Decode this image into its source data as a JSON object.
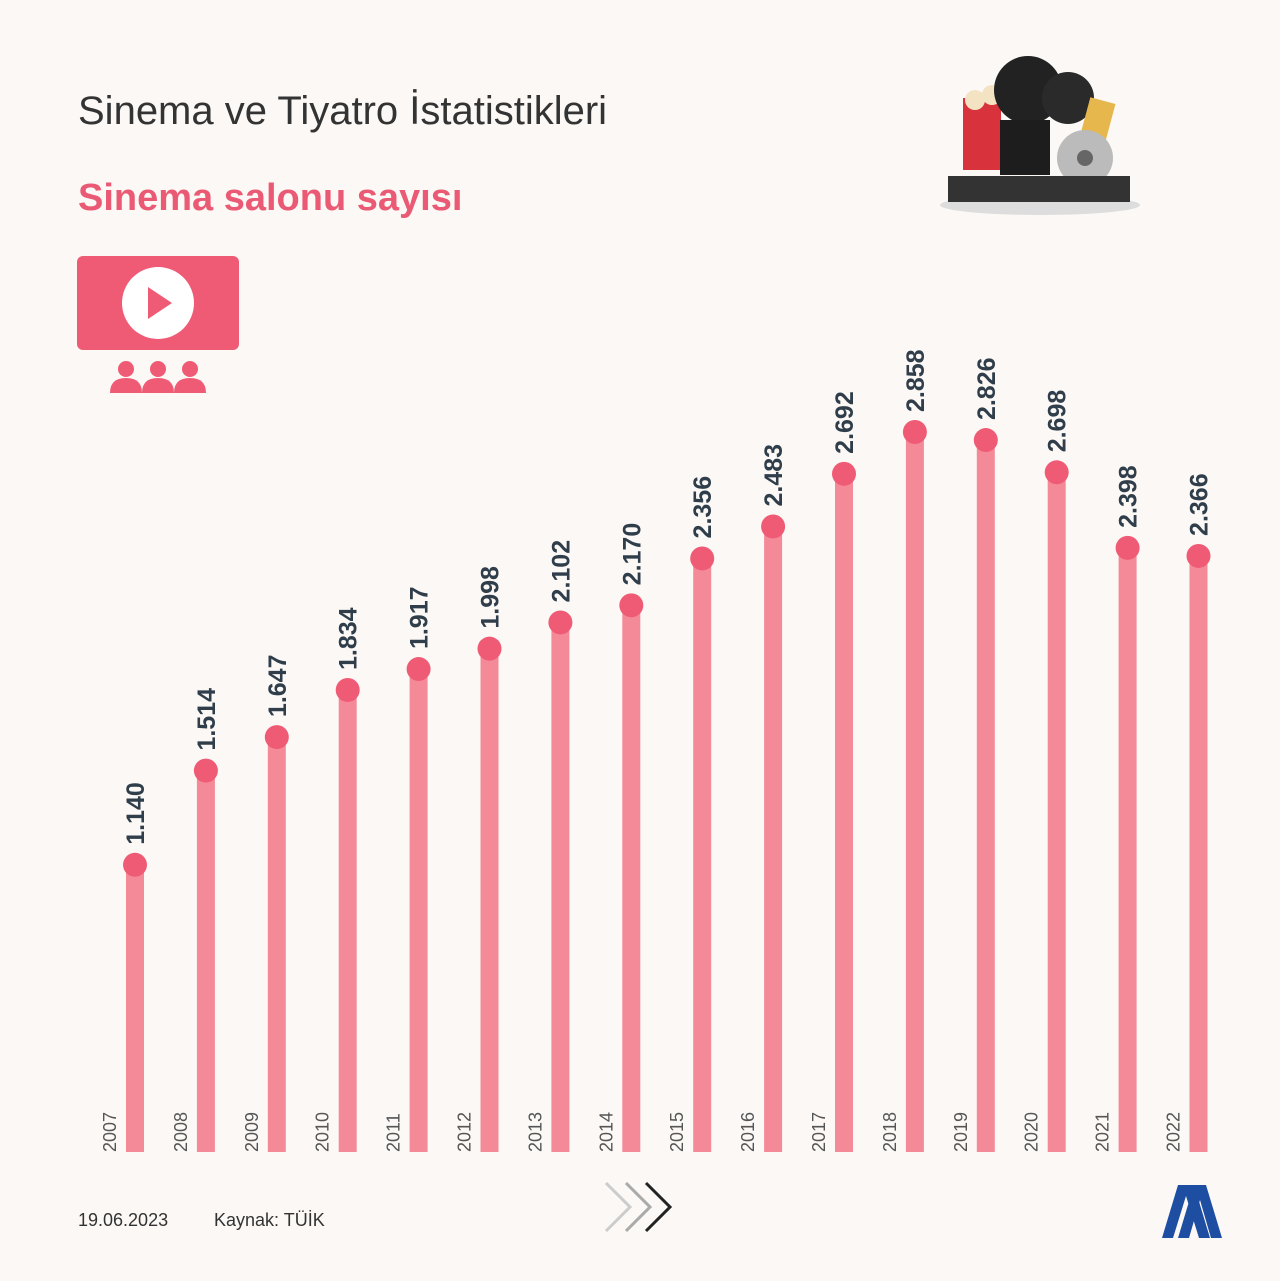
{
  "chart_data": {
    "type": "lollipop",
    "title": "Sinema ve Tiyatro İstatistikleri",
    "subtitle": "Sinema salonu sayısı",
    "categories": [
      "2007",
      "2008",
      "2009",
      "2010",
      "2011",
      "2012",
      "2013",
      "2014",
      "2015",
      "2016",
      "2017",
      "2018",
      "2019",
      "2020",
      "2021",
      "2022"
    ],
    "values": [
      1140,
      1514,
      1647,
      1834,
      1917,
      1998,
      2102,
      2170,
      2356,
      2483,
      2692,
      2858,
      2826,
      2698,
      2398,
      2366
    ],
    "value_labels": [
      "1.140",
      "1.514",
      "1.647",
      "1.834",
      "1.917",
      "1.998",
      "2.102",
      "2.170",
      "2.356",
      "2.483",
      "2.692",
      "2.858",
      "2.826",
      "2.698",
      "2.398",
      "2.366"
    ],
    "bar_color": "#f48a98",
    "dot_color": "#ef5b75",
    "date": "19.06.2023",
    "source": "Kaynak: TÜİK"
  }
}
